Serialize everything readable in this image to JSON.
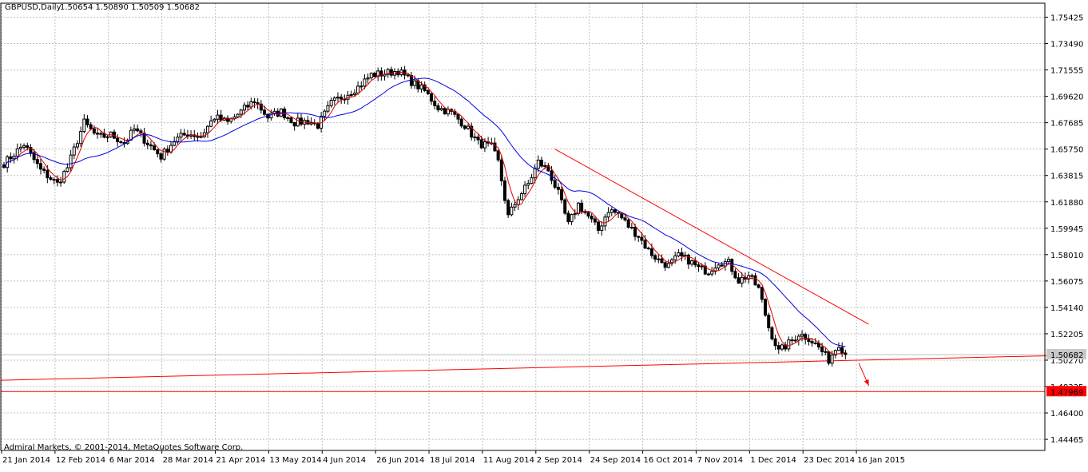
{
  "header": {
    "symbol_timeframe": "GBPUSD,Daily",
    "ohlc": "1.50654 1.50890 1.50509 1.50682"
  },
  "footer": {
    "copyright": "Admiral Markets, © 2001-2014, MetaQuotes Software Corp."
  },
  "colors": {
    "background": "#ffffff",
    "grid": "#c0c0c0",
    "candle": "#000000",
    "ma_fast": "#e00000",
    "ma_slow": "#0000e0",
    "trendline": "#ff0000",
    "price_line": "#c0c0c0",
    "level_label_bg": "#ff0000"
  },
  "chart_data": {
    "type": "candlestick",
    "symbol": "GBPUSD",
    "timeframe": "Daily",
    "ylim": [
      1.4365,
      1.7645
    ],
    "y_ticks": [
      "1.75425",
      "1.73490",
      "1.71555",
      "1.69620",
      "1.67685",
      "1.65750",
      "1.63815",
      "1.61880",
      "1.59945",
      "1.58010",
      "1.56075",
      "1.54140",
      "1.52205",
      "1.50270",
      "1.48335",
      "1.46400",
      "1.44465"
    ],
    "x_ticks": [
      "21 Jan 2014",
      "12 Feb 2014",
      "6 Mar 2014",
      "28 Mar 2014",
      "21 Apr 2014",
      "13 May 2014",
      "4 Jun 2014",
      "26 Jun 2014",
      "18 Jul 2014",
      "11 Aug 2014",
      "2 Sep 2014",
      "24 Sep 2014",
      "16 Oct 2014",
      "7 Nov 2014",
      "1 Dec 2014",
      "23 Dec 2014",
      "16 Jan 2015"
    ],
    "price_path": [
      [
        0,
        1.647
      ],
      [
        6,
        1.661
      ],
      [
        11,
        1.642
      ],
      [
        16,
        1.632
      ],
      [
        19,
        1.644
      ],
      [
        24,
        1.677
      ],
      [
        28,
        1.666
      ],
      [
        32,
        1.668
      ],
      [
        36,
        1.662
      ],
      [
        39,
        1.672
      ],
      [
        43,
        1.662
      ],
      [
        47,
        1.652
      ],
      [
        51,
        1.664
      ],
      [
        55,
        1.669
      ],
      [
        59,
        1.667
      ],
      [
        63,
        1.681
      ],
      [
        67,
        1.677
      ],
      [
        71,
        1.685
      ],
      [
        75,
        1.693
      ],
      [
        79,
        1.681
      ],
      [
        83,
        1.685
      ],
      [
        87,
        1.677
      ],
      [
        91,
        1.678
      ],
      [
        94,
        1.675
      ],
      [
        98,
        1.691
      ],
      [
        102,
        1.697
      ],
      [
        106,
        1.703
      ],
      [
        110,
        1.712
      ],
      [
        114,
        1.713
      ],
      [
        118,
        1.715
      ],
      [
        122,
        1.707
      ],
      [
        126,
        1.7
      ],
      [
        130,
        1.688
      ],
      [
        134,
        1.684
      ],
      [
        138,
        1.675
      ],
      [
        142,
        1.662
      ],
      [
        146,
        1.659
      ],
      [
        148,
        1.648
      ],
      [
        151,
        1.608
      ],
      [
        154,
        1.622
      ],
      [
        157,
        1.632
      ],
      [
        160,
        1.648
      ],
      [
        163,
        1.642
      ],
      [
        166,
        1.625
      ],
      [
        169,
        1.602
      ],
      [
        172,
        1.617
      ],
      [
        175,
        1.608
      ],
      [
        178,
        1.598
      ],
      [
        181,
        1.613
      ],
      [
        184,
        1.61
      ],
      [
        187,
        1.601
      ],
      [
        190,
        1.594
      ],
      [
        193,
        1.583
      ],
      [
        196,
        1.576
      ],
      [
        199,
        1.572
      ],
      [
        202,
        1.579
      ],
      [
        205,
        1.576
      ],
      [
        208,
        1.57
      ],
      [
        211,
        1.568
      ],
      [
        214,
        1.575
      ],
      [
        217,
        1.574
      ],
      [
        220,
        1.561
      ],
      [
        223,
        1.565
      ],
      [
        226,
        1.555
      ],
      [
        229,
        1.527
      ],
      [
        232,
        1.509
      ],
      [
        235,
        1.515
      ],
      [
        238,
        1.522
      ],
      [
        241,
        1.519
      ],
      [
        244,
        1.512
      ],
      [
        247,
        1.503
      ],
      [
        250,
        1.515
      ],
      [
        252,
        1.5068
      ]
    ],
    "moving_averages": [
      {
        "color": "#e00000",
        "period": 5
      },
      {
        "color": "#0000e0",
        "period": 21
      }
    ],
    "current_price": "1.50682",
    "level": {
      "value": 1.47969,
      "label": "1.47969"
    },
    "trendlines": [
      {
        "from": {
          "bar": 165,
          "price": 1.6575
        },
        "to": {
          "bar": 259,
          "price": 1.529
        }
      },
      {
        "from": {
          "bar": -1,
          "price": 1.488
        },
        "to": {
          "bar": 314,
          "price": 1.506
        }
      }
    ],
    "projection_arrow": {
      "from": {
        "bar": 256,
        "price": 1.5005
      },
      "to": {
        "bar": 259,
        "price": 1.484
      }
    },
    "grid": true
  }
}
